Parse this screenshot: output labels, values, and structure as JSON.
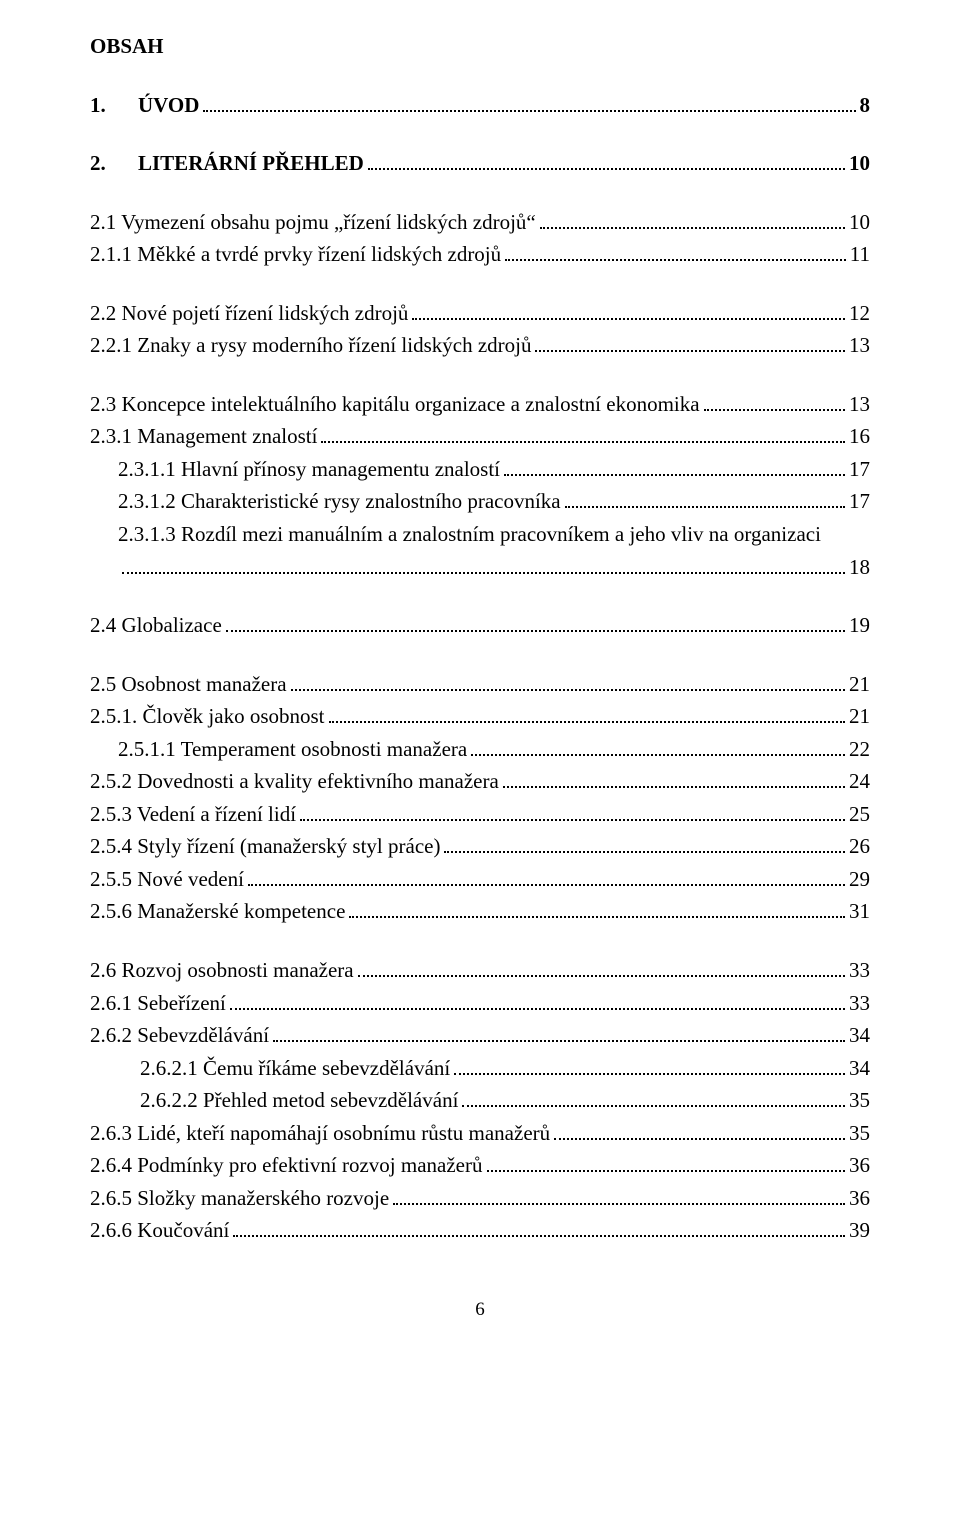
{
  "title": "OBSAH",
  "page_number": "6",
  "entries": [
    {
      "cls": "level0",
      "num": "1.",
      "label": "ÚVOD",
      "page": "8"
    },
    {
      "cls": "level0",
      "num": "2.",
      "label": "LITERÁRNÍ PŘEHLED",
      "page": "10"
    },
    {
      "cls": "level1",
      "label": "2.1      Vymezení obsahu pojmu „řízení lidských zdrojů“",
      "page": "10"
    },
    {
      "cls": "level1sub",
      "label": "2.1.1 Měkké a tvrdé prvky řízení lidských zdrojů",
      "page": "11"
    },
    {
      "cls": "level1 group-gap",
      "label": "2.2 Nové pojetí řízení lidských zdrojů",
      "page": "12"
    },
    {
      "cls": "level1sub",
      "label": "2.2.1 Znaky a rysy moderního řízení lidských zdrojů",
      "page": "13"
    },
    {
      "cls": "level1 group-gap",
      "label": "2.3 Koncepce intelektuálního kapitálu organizace a znalostní ekonomika",
      "page": "13"
    },
    {
      "cls": "level1sub",
      "label": "2.3.1 Management znalostí",
      "page": "16"
    },
    {
      "cls": "level2",
      "label": "2.3.1.1 Hlavní přínosy managementu znalostí",
      "page": "17"
    },
    {
      "cls": "level2",
      "label": "2.3.1.2 Charakteristické rysy znalostního pracovníka",
      "page": "17"
    },
    {
      "cls": "level2",
      "label": "2.3.1.3 Rozdíl mezi manuálním a znalostním pracovníkem a jeho vliv na organizaci",
      "page": "",
      "wrap": true
    },
    {
      "cls": "level2 wrap-cont",
      "label": "",
      "page": "18",
      "leader_only": true
    },
    {
      "cls": "level1 group-gap",
      "label": "2.4 Globalizace",
      "page": "19"
    },
    {
      "cls": "level1 group-gap",
      "label": "2.5 Osobnost manažera",
      "page": "21"
    },
    {
      "cls": "level1sub",
      "label": "2.5.1. Člověk jako osobnost",
      "page": "21"
    },
    {
      "cls": "level2",
      "label": "2.5.1.1 Temperament osobnosti manažera",
      "page": "22"
    },
    {
      "cls": "level1sub",
      "label": "2.5.2 Dovednosti a kvality efektivního manažera",
      "page": "24"
    },
    {
      "cls": "level1sub",
      "label": "2.5.3 Vedení a řízení lidí",
      "page": "25"
    },
    {
      "cls": "level1sub",
      "label": "2.5.4 Styly řízení (manažerský styl práce)",
      "page": "26"
    },
    {
      "cls": "level1sub",
      "label": "2.5.5 Nové vedení",
      "page": "29"
    },
    {
      "cls": "level1sub",
      "label": "2.5.6 Manažerské kompetence",
      "page": "31"
    },
    {
      "cls": "level1 group-gap",
      "label": "2.6 Rozvoj osobnosti manažera",
      "page": "33"
    },
    {
      "cls": "level1sub",
      "label": "2.6.1 Sebeřízení",
      "page": "33"
    },
    {
      "cls": "level1sub",
      "label": "2.6.2 Sebevzdělávání",
      "page": "34"
    },
    {
      "cls": "level3",
      "label": "2.6.2.1 Čemu říkáme sebevzdělávání",
      "page": "34"
    },
    {
      "cls": "level3",
      "label": "2.6.2.2 Přehled metod sebevzdělávání",
      "page": "35"
    },
    {
      "cls": "level1sub",
      "label": "2.6.3 Lidé, kteří napomáhají osobnímu růstu manažerů",
      "page": "35"
    },
    {
      "cls": "level1sub",
      "label": "2.6.4 Podmínky pro efektivní rozvoj manažerů",
      "page": "36"
    },
    {
      "cls": "level1sub",
      "label": "2.6.5 Složky manažerského rozvoje",
      "page": "36"
    },
    {
      "cls": "level1sub",
      "label": "2.6.6 Koučování",
      "page": "39"
    }
  ]
}
